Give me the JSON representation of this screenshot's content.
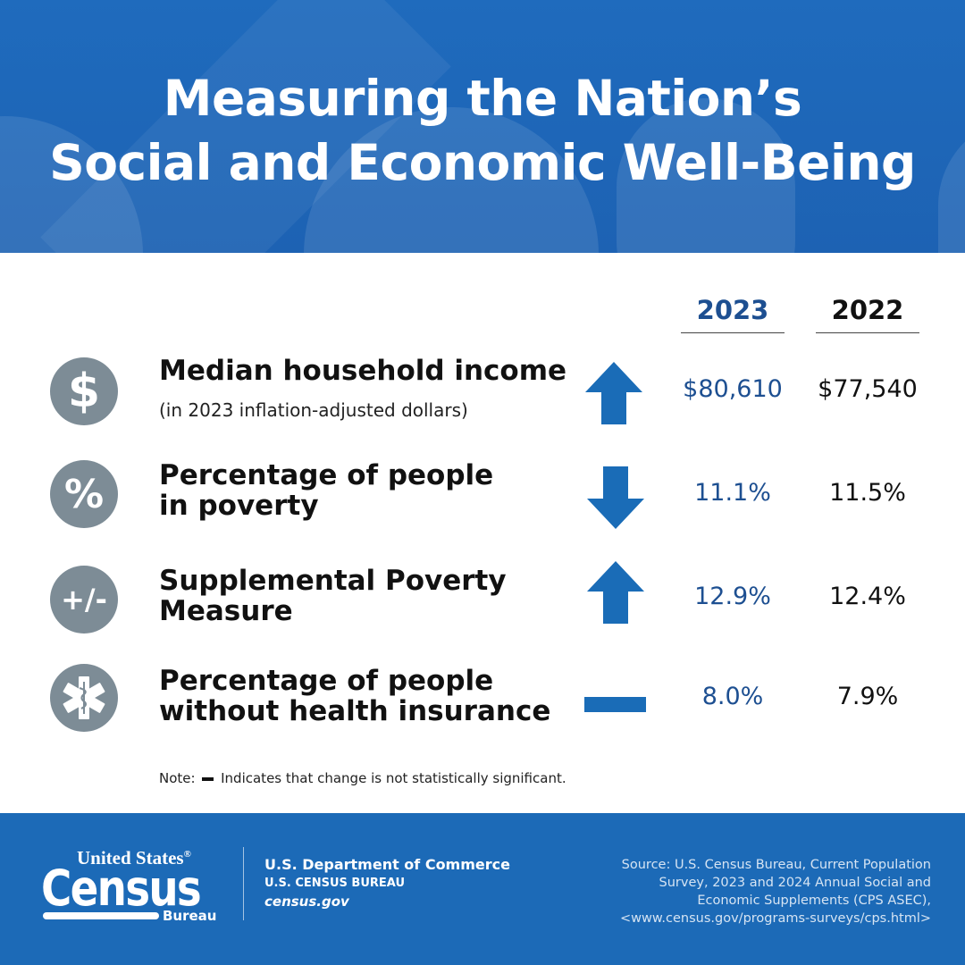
{
  "header": {
    "title_line1": "Measuring the Nation’s",
    "title_line2": "Social and Economic Well-Being"
  },
  "columns": {
    "year1": "2023",
    "year2": "2022"
  },
  "rows": [
    {
      "icon": "dollar-icon",
      "icon_text": "$",
      "label": "Median household income",
      "label_line2": "",
      "sublabel": "(in 2023 inflation-adjusted dollars)",
      "change": "up",
      "value_2023": "$80,610",
      "value_2022": "$77,540"
    },
    {
      "icon": "percent-icon",
      "icon_text": "%",
      "label": "Percentage of people",
      "label_line2": "in poverty",
      "sublabel": "",
      "change": "down",
      "value_2023": "11.1%",
      "value_2022": "11.5%"
    },
    {
      "icon": "plus-minus-icon",
      "icon_text": "+/-",
      "label": "Supplemental Poverty",
      "label_line2": "Measure",
      "sublabel": "",
      "change": "up",
      "value_2023": "12.9%",
      "value_2022": "12.4%"
    },
    {
      "icon": "medical-star-icon",
      "icon_text": "",
      "label": "Percentage of people",
      "label_line2": "without health insurance",
      "sublabel": "",
      "change": "no-significant-change",
      "value_2023": "8.0%",
      "value_2022": "7.9%"
    }
  ],
  "note": {
    "prefix": "Note:",
    "text": "Indicates that change is not statistically significant."
  },
  "footer": {
    "logo_top": "United States",
    "logo_registered": "®",
    "logo_main": "Census",
    "logo_bottom": "Bureau",
    "dept_line1": "U.S. Department of Commerce",
    "dept_line2": "U.S. CENSUS BUREAU",
    "dept_line3": "census.gov",
    "source_line1": "Source: U.S. Census Bureau, Current Population",
    "source_line2": "Survey, 2023 and 2024 Annual Social and",
    "source_line3": "Economic Supplements (CPS ASEC),",
    "source_line4": "<www.census.gov/programs-surveys/cps.html>"
  },
  "colors": {
    "accent_blue": "#1c6ab7",
    "value_blue": "#1d4f91",
    "icon_gray": "#7d8c96",
    "arrow_blue": "#1a6cb7"
  }
}
